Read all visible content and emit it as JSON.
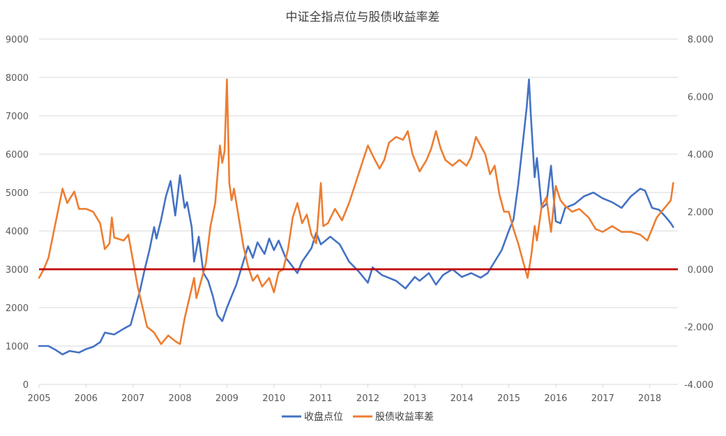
{
  "colors": {
    "series1": "#4472c4",
    "series2": "#ed7d31",
    "reference_line": "#c00000",
    "grid": "#d9d9d9",
    "text": "#595959"
  },
  "chart_data": {
    "type": "line",
    "title": "中证全指点位与股债收益率差",
    "grid": "horizontal",
    "legend_position": "bottom",
    "x_axis": {
      "ticks": [
        "2005",
        "2006",
        "2007",
        "2008",
        "2009",
        "2010",
        "2011",
        "2012",
        "2013",
        "2014",
        "2015",
        "2016",
        "2017",
        "2018"
      ],
      "range": [
        2005,
        2018.6
      ]
    },
    "y_left": {
      "ticks": [
        "0",
        "1000",
        "2000",
        "3000",
        "4000",
        "5000",
        "6000",
        "7000",
        "8000",
        "9000"
      ],
      "range": [
        0,
        9000
      ]
    },
    "y_right": {
      "ticks": [
        "-4.000",
        "-2.000",
        "0.000",
        "2.000",
        "4.000",
        "6.000",
        "8.000"
      ],
      "range": [
        -4,
        8
      ]
    },
    "reference_line": {
      "axis": "right",
      "value": 0
    },
    "series": [
      {
        "name": "收盘点位",
        "axis": "left",
        "color": "#4472c4",
        "points": [
          [
            2005.0,
            1000
          ],
          [
            2005.2,
            1000
          ],
          [
            2005.35,
            900
          ],
          [
            2005.5,
            780
          ],
          [
            2005.65,
            870
          ],
          [
            2005.85,
            830
          ],
          [
            2006.0,
            920
          ],
          [
            2006.15,
            980
          ],
          [
            2006.3,
            1100
          ],
          [
            2006.4,
            1350
          ],
          [
            2006.6,
            1300
          ],
          [
            2006.8,
            1450
          ],
          [
            2006.95,
            1550
          ],
          [
            2007.05,
            2000
          ],
          [
            2007.15,
            2450
          ],
          [
            2007.25,
            3000
          ],
          [
            2007.35,
            3500
          ],
          [
            2007.45,
            4100
          ],
          [
            2007.5,
            3800
          ],
          [
            2007.6,
            4300
          ],
          [
            2007.7,
            4900
          ],
          [
            2007.8,
            5300
          ],
          [
            2007.9,
            4400
          ],
          [
            2008.0,
            5450
          ],
          [
            2008.1,
            4600
          ],
          [
            2008.15,
            4750
          ],
          [
            2008.25,
            4100
          ],
          [
            2008.3,
            3200
          ],
          [
            2008.4,
            3850
          ],
          [
            2008.5,
            2900
          ],
          [
            2008.6,
            2700
          ],
          [
            2008.7,
            2300
          ],
          [
            2008.8,
            1800
          ],
          [
            2008.9,
            1650
          ],
          [
            2009.0,
            2000
          ],
          [
            2009.1,
            2300
          ],
          [
            2009.2,
            2600
          ],
          [
            2009.3,
            3000
          ],
          [
            2009.45,
            3600
          ],
          [
            2009.55,
            3300
          ],
          [
            2009.65,
            3700
          ],
          [
            2009.8,
            3400
          ],
          [
            2009.9,
            3800
          ],
          [
            2010.0,
            3500
          ],
          [
            2010.1,
            3750
          ],
          [
            2010.25,
            3300
          ],
          [
            2010.35,
            3150
          ],
          [
            2010.5,
            2900
          ],
          [
            2010.6,
            3200
          ],
          [
            2010.8,
            3550
          ],
          [
            2010.9,
            3950
          ],
          [
            2011.0,
            3650
          ],
          [
            2011.2,
            3850
          ],
          [
            2011.4,
            3650
          ],
          [
            2011.6,
            3200
          ],
          [
            2011.8,
            2950
          ],
          [
            2012.0,
            2650
          ],
          [
            2012.1,
            3050
          ],
          [
            2012.3,
            2850
          ],
          [
            2012.6,
            2700
          ],
          [
            2012.8,
            2500
          ],
          [
            2013.0,
            2800
          ],
          [
            2013.1,
            2700
          ],
          [
            2013.3,
            2900
          ],
          [
            2013.45,
            2600
          ],
          [
            2013.6,
            2850
          ],
          [
            2013.8,
            3000
          ],
          [
            2014.0,
            2800
          ],
          [
            2014.2,
            2900
          ],
          [
            2014.4,
            2780
          ],
          [
            2014.55,
            2900
          ],
          [
            2014.7,
            3200
          ],
          [
            2014.85,
            3500
          ],
          [
            2015.0,
            4000
          ],
          [
            2015.1,
            4300
          ],
          [
            2015.2,
            5200
          ],
          [
            2015.3,
            6300
          ],
          [
            2015.38,
            7200
          ],
          [
            2015.43,
            7950
          ],
          [
            2015.47,
            7000
          ],
          [
            2015.55,
            5400
          ],
          [
            2015.6,
            5900
          ],
          [
            2015.7,
            4600
          ],
          [
            2015.8,
            4700
          ],
          [
            2015.9,
            5700
          ],
          [
            2016.0,
            4250
          ],
          [
            2016.1,
            4200
          ],
          [
            2016.2,
            4600
          ],
          [
            2016.4,
            4700
          ],
          [
            2016.6,
            4900
          ],
          [
            2016.8,
            5000
          ],
          [
            2017.0,
            4850
          ],
          [
            2017.2,
            4750
          ],
          [
            2017.4,
            4600
          ],
          [
            2017.6,
            4900
          ],
          [
            2017.8,
            5100
          ],
          [
            2017.9,
            5050
          ],
          [
            2018.05,
            4600
          ],
          [
            2018.2,
            4550
          ],
          [
            2018.35,
            4350
          ],
          [
            2018.45,
            4200
          ],
          [
            2018.5,
            4100
          ]
        ]
      },
      {
        "name": "股债收益率差",
        "axis": "right",
        "color": "#ed7d31",
        "points": [
          [
            2005.0,
            -0.3
          ],
          [
            2005.1,
            0.0
          ],
          [
            2005.2,
            0.4
          ],
          [
            2005.3,
            1.2
          ],
          [
            2005.4,
            2.0
          ],
          [
            2005.5,
            2.8
          ],
          [
            2005.6,
            2.3
          ],
          [
            2005.75,
            2.7
          ],
          [
            2005.85,
            2.1
          ],
          [
            2006.0,
            2.1
          ],
          [
            2006.15,
            2.0
          ],
          [
            2006.3,
            1.6
          ],
          [
            2006.4,
            0.7
          ],
          [
            2006.5,
            0.9
          ],
          [
            2006.55,
            1.8
          ],
          [
            2006.6,
            1.1
          ],
          [
            2006.8,
            1.0
          ],
          [
            2006.9,
            1.2
          ],
          [
            2007.0,
            0.3
          ],
          [
            2007.1,
            -0.6
          ],
          [
            2007.2,
            -1.3
          ],
          [
            2007.3,
            -2.0
          ],
          [
            2007.45,
            -2.2
          ],
          [
            2007.6,
            -2.6
          ],
          [
            2007.75,
            -2.3
          ],
          [
            2007.9,
            -2.5
          ],
          [
            2008.0,
            -2.6
          ],
          [
            2008.1,
            -1.7
          ],
          [
            2008.2,
            -1.0
          ],
          [
            2008.3,
            -0.3
          ],
          [
            2008.35,
            -1.0
          ],
          [
            2008.45,
            -0.4
          ],
          [
            2008.55,
            0.2
          ],
          [
            2008.65,
            1.5
          ],
          [
            2008.75,
            2.3
          ],
          [
            2008.85,
            4.3
          ],
          [
            2008.9,
            3.7
          ],
          [
            2008.95,
            4.1
          ],
          [
            2009.0,
            6.6
          ],
          [
            2009.05,
            3.0
          ],
          [
            2009.1,
            2.4
          ],
          [
            2009.15,
            2.8
          ],
          [
            2009.25,
            1.8
          ],
          [
            2009.35,
            0.8
          ],
          [
            2009.45,
            0.1
          ],
          [
            2009.55,
            -0.4
          ],
          [
            2009.65,
            -0.2
          ],
          [
            2009.75,
            -0.6
          ],
          [
            2009.9,
            -0.3
          ],
          [
            2010.0,
            -0.8
          ],
          [
            2010.1,
            -0.1
          ],
          [
            2010.2,
            0.0
          ],
          [
            2010.3,
            0.7
          ],
          [
            2010.4,
            1.8
          ],
          [
            2010.5,
            2.3
          ],
          [
            2010.6,
            1.6
          ],
          [
            2010.7,
            1.9
          ],
          [
            2010.8,
            1.2
          ],
          [
            2010.9,
            0.9
          ],
          [
            2011.0,
            3.0
          ],
          [
            2011.05,
            1.5
          ],
          [
            2011.15,
            1.6
          ],
          [
            2011.3,
            2.1
          ],
          [
            2011.45,
            1.7
          ],
          [
            2011.6,
            2.3
          ],
          [
            2011.7,
            2.8
          ],
          [
            2011.8,
            3.3
          ],
          [
            2011.9,
            3.8
          ],
          [
            2012.0,
            4.3
          ],
          [
            2012.15,
            3.8
          ],
          [
            2012.25,
            3.5
          ],
          [
            2012.35,
            3.8
          ],
          [
            2012.45,
            4.4
          ],
          [
            2012.6,
            4.6
          ],
          [
            2012.75,
            4.5
          ],
          [
            2012.85,
            4.8
          ],
          [
            2012.95,
            4.0
          ],
          [
            2013.1,
            3.4
          ],
          [
            2013.25,
            3.8
          ],
          [
            2013.35,
            4.2
          ],
          [
            2013.45,
            4.8
          ],
          [
            2013.55,
            4.2
          ],
          [
            2013.65,
            3.8
          ],
          [
            2013.8,
            3.6
          ],
          [
            2013.95,
            3.8
          ],
          [
            2014.1,
            3.6
          ],
          [
            2014.2,
            3.9
          ],
          [
            2014.3,
            4.6
          ],
          [
            2014.4,
            4.3
          ],
          [
            2014.5,
            4.0
          ],
          [
            2014.6,
            3.3
          ],
          [
            2014.7,
            3.6
          ],
          [
            2014.8,
            2.6
          ],
          [
            2014.9,
            2.0
          ],
          [
            2015.0,
            2.0
          ],
          [
            2015.1,
            1.4
          ],
          [
            2015.2,
            0.9
          ],
          [
            2015.3,
            0.3
          ],
          [
            2015.4,
            -0.3
          ],
          [
            2015.48,
            0.5
          ],
          [
            2015.55,
            1.5
          ],
          [
            2015.6,
            1.0
          ],
          [
            2015.7,
            2.2
          ],
          [
            2015.8,
            2.5
          ],
          [
            2015.9,
            1.3
          ],
          [
            2016.0,
            2.9
          ],
          [
            2016.1,
            2.4
          ],
          [
            2016.2,
            2.2
          ],
          [
            2016.35,
            2.0
          ],
          [
            2016.5,
            2.1
          ],
          [
            2016.7,
            1.8
          ],
          [
            2016.85,
            1.4
          ],
          [
            2017.0,
            1.3
          ],
          [
            2017.2,
            1.5
          ],
          [
            2017.4,
            1.3
          ],
          [
            2017.6,
            1.3
          ],
          [
            2017.8,
            1.2
          ],
          [
            2017.95,
            1.0
          ],
          [
            2018.05,
            1.4
          ],
          [
            2018.15,
            1.8
          ],
          [
            2018.25,
            2.0
          ],
          [
            2018.35,
            2.2
          ],
          [
            2018.45,
            2.4
          ],
          [
            2018.5,
            3.0
          ]
        ]
      }
    ]
  }
}
